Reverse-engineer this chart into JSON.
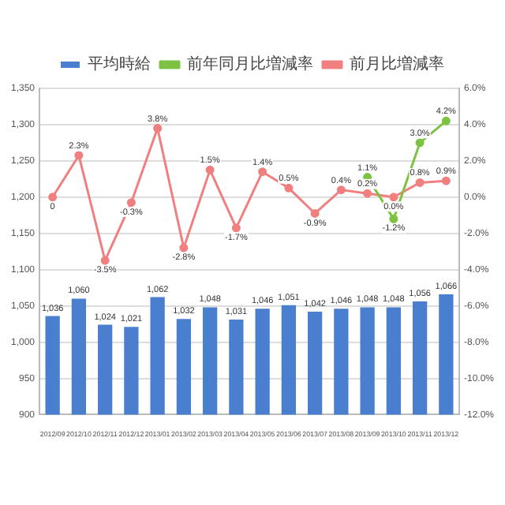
{
  "chart_data": {
    "type": "bar",
    "categories": [
      "2012/09",
      "2012/10",
      "2012/11",
      "2012/12",
      "2013/01",
      "2013/02",
      "2013/03",
      "2013/04",
      "2013/05",
      "2013/06",
      "2013/07",
      "2013/08",
      "2013/09",
      "2013/10",
      "2013/11",
      "2013/12"
    ],
    "series": [
      {
        "name": "平均時給",
        "color": "#4a7fd0",
        "values": [
          1036,
          1060,
          1024,
          1021,
          1062,
          1032,
          1048,
          1031,
          1046,
          1051,
          1042,
          1046,
          1048,
          1048,
          1056,
          1066
        ],
        "value_labels": [
          "1,036",
          "1,060",
          "1,024",
          "1,021",
          "1,062",
          "1,032",
          "1,048",
          "1,031",
          "1,046",
          "1,051",
          "1,042",
          "1,046",
          "1,048",
          "1,048",
          "1,056",
          "1,066"
        ]
      },
      {
        "name": "前年同月比増減率",
        "type": "line",
        "axis": "y2",
        "color": "#7dc242",
        "values": [
          null,
          null,
          null,
          null,
          null,
          null,
          null,
          null,
          null,
          null,
          null,
          null,
          1.1,
          -1.2,
          3.0,
          4.2
        ],
        "value_labels": [
          null,
          null,
          null,
          null,
          null,
          null,
          null,
          null,
          null,
          null,
          null,
          null,
          "1.1%",
          "-1.2%",
          "3.0%",
          "4.2%"
        ]
      },
      {
        "name": "前月比増減率",
        "type": "line",
        "axis": "y2",
        "color": "#f08080",
        "values": [
          0,
          2.3,
          -3.5,
          -0.3,
          3.8,
          -2.8,
          1.5,
          -1.7,
          1.4,
          0.5,
          -0.9,
          0.4,
          0.2,
          0.0,
          0.8,
          0.9
        ],
        "value_labels": [
          "0",
          "2.3%",
          "-3.5%",
          "-0.3%",
          "3.8%",
          "-2.8%",
          "1.5%",
          "-1.7%",
          "1.4%",
          "0.5%",
          "-0.9%",
          "0.4%",
          "0.2%",
          "0.0%",
          "0.8%",
          "0.9%"
        ]
      }
    ],
    "ylim": [
      900,
      1350
    ],
    "yticks": [
      {
        "value": 900,
        "label": "900"
      },
      {
        "value": 950,
        "label": "950"
      },
      {
        "value": 1000,
        "label": "1,000"
      },
      {
        "value": 1050,
        "label": "1,050"
      },
      {
        "value": 1100,
        "label": "1,100"
      },
      {
        "value": 1150,
        "label": "1,150"
      },
      {
        "value": 1200,
        "label": "1,200"
      },
      {
        "value": 1250,
        "label": "1,250"
      },
      {
        "value": 1300,
        "label": "1,300"
      },
      {
        "value": 1350,
        "label": "1,350"
      }
    ],
    "y2lim": [
      -12,
      6
    ],
    "y2ticks": [
      {
        "value": -12,
        "label": "-12.0%"
      },
      {
        "value": -10,
        "label": "-10.0%"
      },
      {
        "value": -8,
        "label": "-8.0%"
      },
      {
        "value": -6,
        "label": "-6.0%"
      },
      {
        "value": -4,
        "label": "-4.0%"
      },
      {
        "value": -2,
        "label": "-2.0%"
      },
      {
        "value": 0,
        "label": "0.0%"
      },
      {
        "value": 2,
        "label": "2.0%"
      },
      {
        "value": 4,
        "label": "4.0%"
      },
      {
        "value": 6,
        "label": "6.0%"
      }
    ],
    "grid": "y",
    "legend": "top",
    "marker": "circle"
  }
}
